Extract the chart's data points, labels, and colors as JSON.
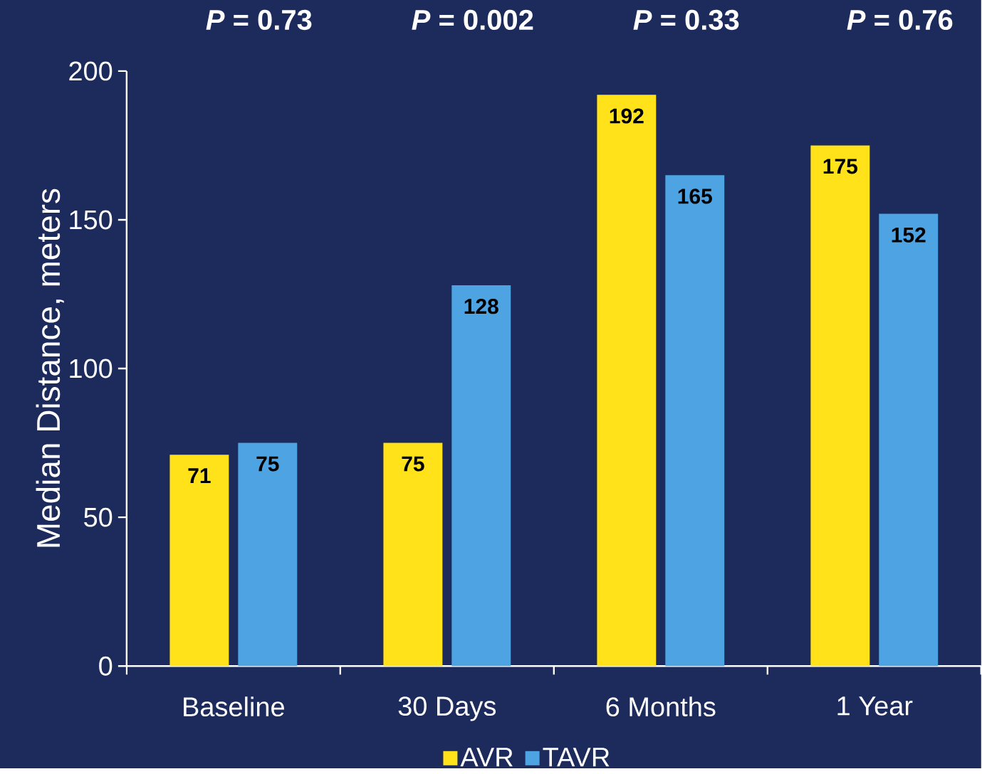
{
  "chart_data": {
    "type": "bar",
    "ylabel": "Median Distance, meters",
    "categories": [
      "Baseline",
      "30 Days",
      "6 Months",
      "1 Year"
    ],
    "series": [
      {
        "name": "AVR",
        "color": "#ffe21a",
        "values": [
          71,
          75,
          192,
          175
        ]
      },
      {
        "name": "TAVR",
        "color": "#4ea4e2",
        "values": [
          75,
          128,
          165,
          152
        ]
      }
    ],
    "ylim": [
      0,
      200
    ],
    "yticks": [
      0,
      50,
      100,
      150,
      200
    ],
    "data_labels": true,
    "legend": "bottom",
    "grid": false,
    "annotations": [
      "*P* = 0.73",
      "*P* = 0.002",
      "*P* = 0.33",
      "*P* = 0.76"
    ]
  }
}
